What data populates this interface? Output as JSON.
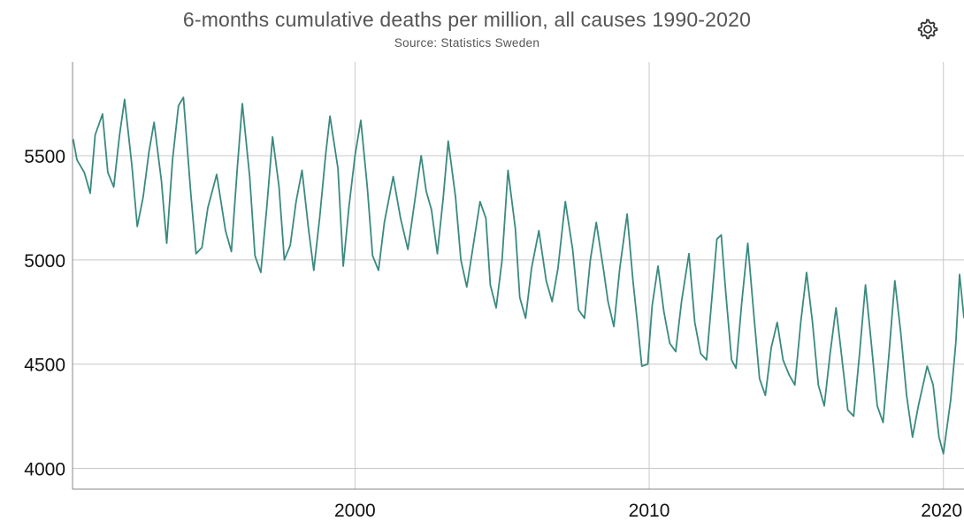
{
  "chart_data": {
    "type": "line",
    "title": "6-months cumulative deaths per million, all causes 1990-2020",
    "subtitle": "Source: Statistics Sweden",
    "xlabel": "",
    "ylabel": "",
    "xlim": [
      1990.4,
      2020.7
    ],
    "ylim": [
      3900,
      5950
    ],
    "yticks": [
      4000,
      4500,
      5000,
      5500
    ],
    "xticks": [
      2000,
      2010,
      2020
    ],
    "grid": true,
    "legend": "none",
    "line_color": "#3a8a80",
    "series": [
      {
        "points": [
          [
            1990.42,
            5580
          ],
          [
            1990.55,
            5480
          ],
          [
            1990.8,
            5420
          ],
          [
            1991.0,
            5320
          ],
          [
            1991.17,
            5600
          ],
          [
            1991.42,
            5700
          ],
          [
            1991.6,
            5420
          ],
          [
            1991.8,
            5350
          ],
          [
            1992.0,
            5600
          ],
          [
            1992.17,
            5770
          ],
          [
            1992.42,
            5450
          ],
          [
            1992.6,
            5160
          ],
          [
            1992.8,
            5300
          ],
          [
            1993.0,
            5520
          ],
          [
            1993.17,
            5660
          ],
          [
            1993.42,
            5380
          ],
          [
            1993.6,
            5080
          ],
          [
            1993.8,
            5480
          ],
          [
            1994.0,
            5740
          ],
          [
            1994.17,
            5780
          ],
          [
            1994.42,
            5320
          ],
          [
            1994.6,
            5030
          ],
          [
            1994.8,
            5060
          ],
          [
            1995.0,
            5250
          ],
          [
            1995.3,
            5410
          ],
          [
            1995.6,
            5140
          ],
          [
            1995.8,
            5040
          ],
          [
            1996.0,
            5440
          ],
          [
            1996.17,
            5750
          ],
          [
            1996.42,
            5400
          ],
          [
            1996.6,
            5020
          ],
          [
            1996.8,
            4940
          ],
          [
            1997.0,
            5250
          ],
          [
            1997.2,
            5590
          ],
          [
            1997.42,
            5350
          ],
          [
            1997.6,
            5000
          ],
          [
            1997.8,
            5070
          ],
          [
            1998.0,
            5280
          ],
          [
            1998.2,
            5430
          ],
          [
            1998.42,
            5150
          ],
          [
            1998.6,
            4950
          ],
          [
            1998.8,
            5200
          ],
          [
            1999.0,
            5500
          ],
          [
            1999.15,
            5690
          ],
          [
            1999.42,
            5440
          ],
          [
            1999.6,
            4970
          ],
          [
            1999.8,
            5260
          ],
          [
            2000.0,
            5500
          ],
          [
            2000.2,
            5670
          ],
          [
            2000.42,
            5350
          ],
          [
            2000.6,
            5020
          ],
          [
            2000.8,
            4950
          ],
          [
            2001.0,
            5180
          ],
          [
            2001.3,
            5400
          ],
          [
            2001.55,
            5200
          ],
          [
            2001.8,
            5050
          ],
          [
            2002.0,
            5250
          ],
          [
            2002.25,
            5500
          ],
          [
            2002.42,
            5330
          ],
          [
            2002.6,
            5240
          ],
          [
            2002.8,
            5030
          ],
          [
            2003.0,
            5300
          ],
          [
            2003.17,
            5570
          ],
          [
            2003.42,
            5300
          ],
          [
            2003.6,
            5000
          ],
          [
            2003.8,
            4870
          ],
          [
            2004.0,
            5050
          ],
          [
            2004.25,
            5280
          ],
          [
            2004.45,
            5200
          ],
          [
            2004.6,
            4880
          ],
          [
            2004.8,
            4770
          ],
          [
            2005.0,
            5000
          ],
          [
            2005.2,
            5430
          ],
          [
            2005.45,
            5150
          ],
          [
            2005.6,
            4820
          ],
          [
            2005.8,
            4720
          ],
          [
            2006.0,
            4960
          ],
          [
            2006.25,
            5140
          ],
          [
            2006.5,
            4900
          ],
          [
            2006.7,
            4800
          ],
          [
            2006.9,
            4960
          ],
          [
            2007.15,
            5280
          ],
          [
            2007.4,
            5050
          ],
          [
            2007.6,
            4760
          ],
          [
            2007.8,
            4720
          ],
          [
            2008.0,
            5000
          ],
          [
            2008.2,
            5180
          ],
          [
            2008.45,
            4950
          ],
          [
            2008.6,
            4800
          ],
          [
            2008.8,
            4680
          ],
          [
            2009.0,
            4960
          ],
          [
            2009.25,
            5220
          ],
          [
            2009.45,
            4900
          ],
          [
            2009.6,
            4700
          ],
          [
            2009.75,
            4490
          ],
          [
            2009.95,
            4500
          ],
          [
            2010.1,
            4780
          ],
          [
            2010.3,
            4970
          ],
          [
            2010.5,
            4750
          ],
          [
            2010.7,
            4600
          ],
          [
            2010.9,
            4560
          ],
          [
            2011.1,
            4800
          ],
          [
            2011.35,
            5030
          ],
          [
            2011.55,
            4700
          ],
          [
            2011.75,
            4550
          ],
          [
            2011.95,
            4520
          ],
          [
            2012.15,
            4850
          ],
          [
            2012.3,
            5100
          ],
          [
            2012.45,
            5120
          ],
          [
            2012.6,
            4850
          ],
          [
            2012.8,
            4520
          ],
          [
            2012.95,
            4480
          ],
          [
            2013.15,
            4800
          ],
          [
            2013.35,
            5080
          ],
          [
            2013.55,
            4750
          ],
          [
            2013.75,
            4430
          ],
          [
            2013.95,
            4350
          ],
          [
            2014.15,
            4580
          ],
          [
            2014.35,
            4700
          ],
          [
            2014.55,
            4520
          ],
          [
            2014.75,
            4450
          ],
          [
            2014.95,
            4400
          ],
          [
            2015.15,
            4700
          ],
          [
            2015.35,
            4940
          ],
          [
            2015.55,
            4700
          ],
          [
            2015.75,
            4400
          ],
          [
            2015.95,
            4300
          ],
          [
            2016.15,
            4550
          ],
          [
            2016.35,
            4770
          ],
          [
            2016.55,
            4530
          ],
          [
            2016.75,
            4280
          ],
          [
            2016.95,
            4250
          ],
          [
            2017.15,
            4550
          ],
          [
            2017.35,
            4880
          ],
          [
            2017.55,
            4600
          ],
          [
            2017.75,
            4300
          ],
          [
            2017.95,
            4220
          ],
          [
            2018.15,
            4550
          ],
          [
            2018.35,
            4900
          ],
          [
            2018.55,
            4650
          ],
          [
            2018.75,
            4350
          ],
          [
            2018.95,
            4150
          ],
          [
            2019.15,
            4300
          ],
          [
            2019.45,
            4490
          ],
          [
            2019.65,
            4400
          ],
          [
            2019.85,
            4150
          ],
          [
            2020.0,
            4070
          ],
          [
            2020.25,
            4330
          ],
          [
            2020.42,
            4600
          ],
          [
            2020.55,
            4930
          ],
          [
            2020.7,
            4720
          ]
        ]
      }
    ]
  }
}
